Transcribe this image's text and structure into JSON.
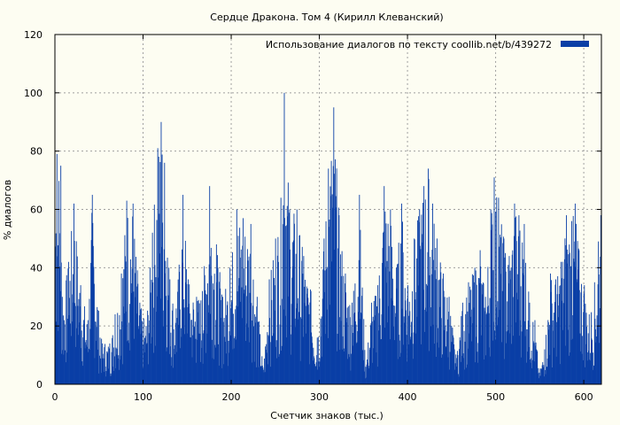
{
  "chart_data": {
    "type": "bar",
    "title": "Сердце Дракона. Том 4 (Кирилл Клеванский)",
    "xlabel": "Счетчик знаков (тыс.)",
    "ylabel": "% диалогов",
    "xlim": [
      0,
      620
    ],
    "ylim": [
      0,
      120
    ],
    "xticks": [
      0,
      100,
      200,
      300,
      400,
      500,
      600
    ],
    "yticks": [
      0,
      20,
      40,
      60,
      80,
      100,
      120
    ],
    "grid": true,
    "legend_position": "top-right",
    "colors": {
      "bar": "#0a3fa6",
      "background": "#fdfdf2",
      "grid": "#a0a0a0"
    },
    "series": [
      {
        "name": "Использование диалогов по тексту  coollib.net/b/439272",
        "peaks": [
          {
            "x": 2,
            "y": 79
          },
          {
            "x": 6,
            "y": 75
          },
          {
            "x": 8,
            "y": 30
          },
          {
            "x": 15,
            "y": 42
          },
          {
            "x": 21,
            "y": 62
          },
          {
            "x": 29,
            "y": 34
          },
          {
            "x": 37,
            "y": 22
          },
          {
            "x": 42,
            "y": 65
          },
          {
            "x": 51,
            "y": 16
          },
          {
            "x": 62,
            "y": 14
          },
          {
            "x": 68,
            "y": 24
          },
          {
            "x": 75,
            "y": 38
          },
          {
            "x": 81,
            "y": 63
          },
          {
            "x": 88,
            "y": 62
          },
          {
            "x": 96,
            "y": 28
          },
          {
            "x": 103,
            "y": 20
          },
          {
            "x": 110,
            "y": 52
          },
          {
            "x": 116,
            "y": 81
          },
          {
            "x": 120,
            "y": 90
          },
          {
            "x": 124,
            "y": 76
          },
          {
            "x": 130,
            "y": 36
          },
          {
            "x": 137,
            "y": 26
          },
          {
            "x": 145,
            "y": 65
          },
          {
            "x": 151,
            "y": 36
          },
          {
            "x": 160,
            "y": 30
          },
          {
            "x": 167,
            "y": 32
          },
          {
            "x": 175,
            "y": 68
          },
          {
            "x": 183,
            "y": 48
          },
          {
            "x": 190,
            "y": 30
          },
          {
            "x": 198,
            "y": 40
          },
          {
            "x": 206,
            "y": 60
          },
          {
            "x": 213,
            "y": 57
          },
          {
            "x": 222,
            "y": 55
          },
          {
            "x": 229,
            "y": 30
          },
          {
            "x": 236,
            "y": 5
          },
          {
            "x": 243,
            "y": 36
          },
          {
            "x": 250,
            "y": 50
          },
          {
            "x": 256,
            "y": 64
          },
          {
            "x": 260,
            "y": 100
          },
          {
            "x": 266,
            "y": 60
          },
          {
            "x": 274,
            "y": 60
          },
          {
            "x": 282,
            "y": 44
          },
          {
            "x": 290,
            "y": 32
          },
          {
            "x": 297,
            "y": 16
          },
          {
            "x": 305,
            "y": 50
          },
          {
            "x": 310,
            "y": 74
          },
          {
            "x": 316,
            "y": 95
          },
          {
            "x": 322,
            "y": 58
          },
          {
            "x": 329,
            "y": 38
          },
          {
            "x": 337,
            "y": 28
          },
          {
            "x": 345,
            "y": 65
          },
          {
            "x": 352,
            "y": 6
          },
          {
            "x": 359,
            "y": 28
          },
          {
            "x": 366,
            "y": 34
          },
          {
            "x": 373,
            "y": 68
          },
          {
            "x": 380,
            "y": 60
          },
          {
            "x": 387,
            "y": 40
          },
          {
            "x": 393,
            "y": 62
          },
          {
            "x": 400,
            "y": 34
          },
          {
            "x": 407,
            "y": 50
          },
          {
            "x": 413,
            "y": 60
          },
          {
            "x": 418,
            "y": 68
          },
          {
            "x": 423,
            "y": 74
          },
          {
            "x": 428,
            "y": 62
          },
          {
            "x": 433,
            "y": 50
          },
          {
            "x": 440,
            "y": 38
          },
          {
            "x": 447,
            "y": 30
          },
          {
            "x": 455,
            "y": 9
          },
          {
            "x": 462,
            "y": 28
          },
          {
            "x": 469,
            "y": 35
          },
          {
            "x": 476,
            "y": 40
          },
          {
            "x": 482,
            "y": 46
          },
          {
            "x": 488,
            "y": 30
          },
          {
            "x": 494,
            "y": 60
          },
          {
            "x": 498,
            "y": 71
          },
          {
            "x": 503,
            "y": 64
          },
          {
            "x": 509,
            "y": 50
          },
          {
            "x": 515,
            "y": 44
          },
          {
            "x": 521,
            "y": 62
          },
          {
            "x": 526,
            "y": 58
          },
          {
            "x": 532,
            "y": 55
          },
          {
            "x": 538,
            "y": 28
          },
          {
            "x": 544,
            "y": 22
          },
          {
            "x": 549,
            "y": 4
          },
          {
            "x": 555,
            "y": 12
          },
          {
            "x": 562,
            "y": 38
          },
          {
            "x": 568,
            "y": 36
          },
          {
            "x": 574,
            "y": 42
          },
          {
            "x": 580,
            "y": 58
          },
          {
            "x": 586,
            "y": 56
          },
          {
            "x": 590,
            "y": 62
          },
          {
            "x": 594,
            "y": 46
          },
          {
            "x": 600,
            "y": 34
          },
          {
            "x": 606,
            "y": 24
          },
          {
            "x": 612,
            "y": 35
          },
          {
            "x": 616,
            "y": 49
          },
          {
            "x": 619,
            "y": 58
          }
        ]
      }
    ]
  }
}
